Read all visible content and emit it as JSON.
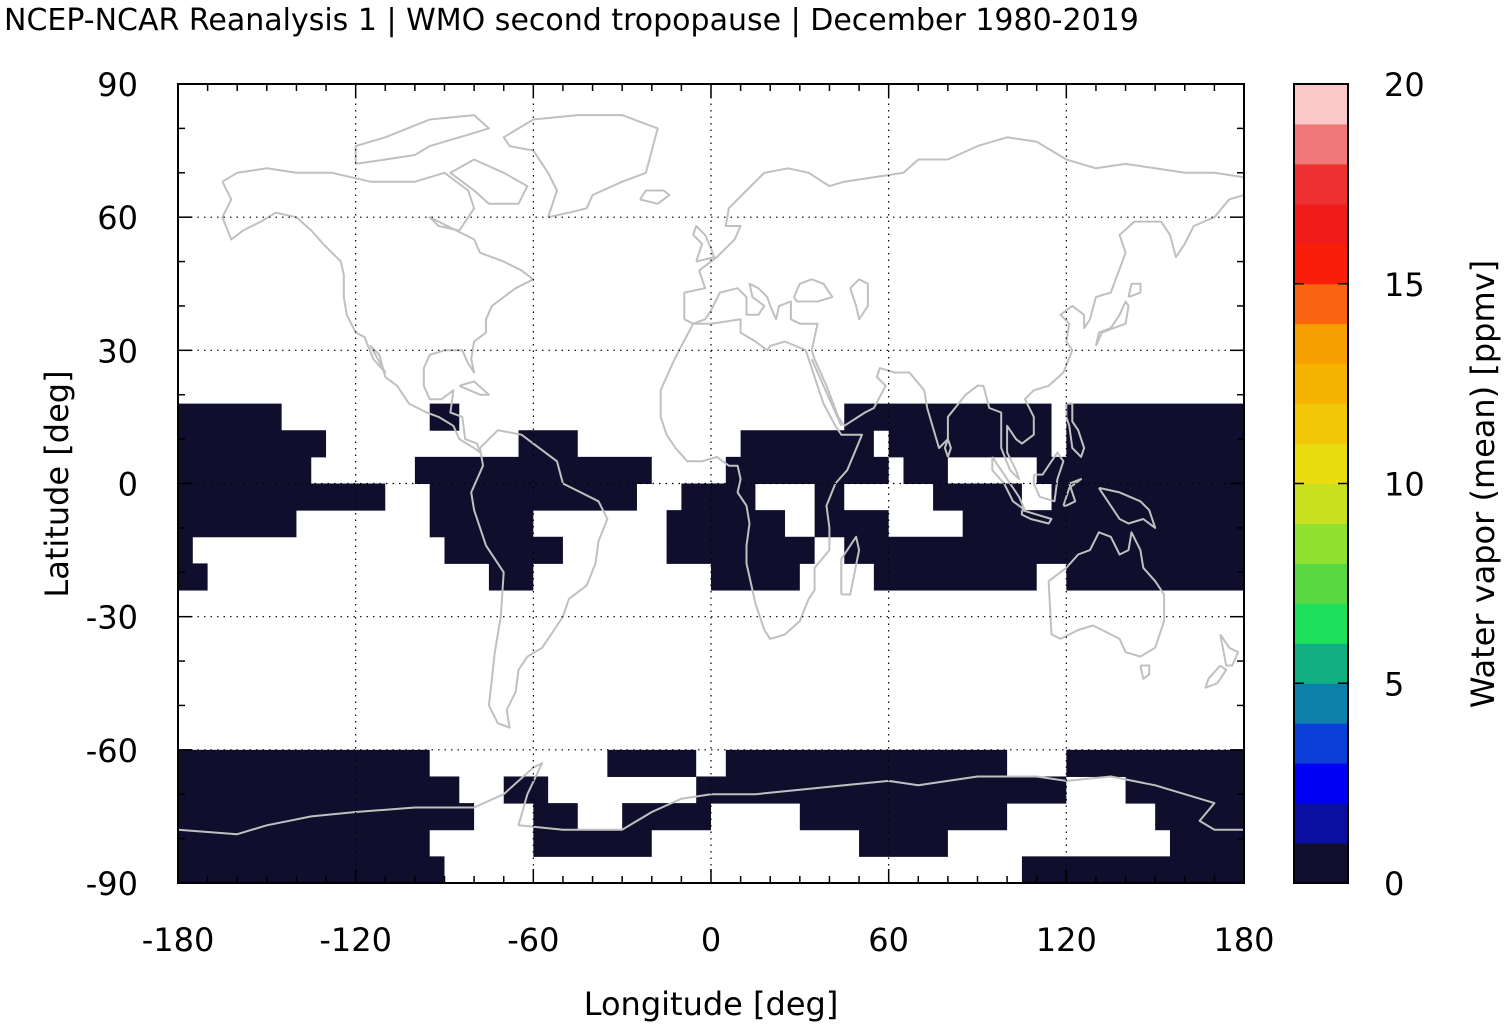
{
  "title": "NCEP-NCAR Reanalysis 1 | WMO second tropopause | December 1980-2019",
  "chart_data": {
    "type": "heatmap",
    "projection": "equirectangular",
    "xlabel": "Longitude [deg]",
    "ylabel": "Latitude [deg]",
    "xlim": [
      -180,
      180
    ],
    "ylim": [
      -90,
      90
    ],
    "xticks": [
      "-180",
      "-120",
      "-60",
      "0",
      "60",
      "120",
      "180"
    ],
    "yticks": [
      "90",
      "60",
      "30",
      "0",
      "-30",
      "-60",
      "-90"
    ],
    "grid": "dotted",
    "coastlines_color": "#c0c0c0",
    "cell_size_deg": [
      5,
      3
    ],
    "cell_value_ppmv": "0-1 (lowest colour class)",
    "cell_color": "#0f0f2d",
    "missing": "white",
    "colorbar": {
      "label": "Water vapor (mean) [ppmv]",
      "ticks": [
        "0",
        "5",
        "10",
        "15",
        "20"
      ],
      "range": [
        0,
        20
      ],
      "colors": [
        "#10102e",
        "#0a0fa0",
        "#0000f5",
        "#0a40d8",
        "#0a80aa",
        "#10b080",
        "#1de05a",
        "#5ad840",
        "#90e030",
        "#c8e020",
        "#e8dc10",
        "#f0c808",
        "#f5b400",
        "#f5a000",
        "#fa6410",
        "#fa1e0a",
        "#f01c1c",
        "#ee3030",
        "#f07878",
        "#fac8c8"
      ]
    },
    "high_band": [
      {
        "lat": [
          12,
          18
        ],
        "lon": [
          [
            -180,
            -145
          ],
          [
            -95,
            -85
          ],
          [
            45,
            90
          ],
          [
            90,
            115
          ],
          [
            120,
            180
          ]
        ]
      },
      {
        "lat": [
          6,
          12
        ],
        "lon": [
          [
            -180,
            -130
          ],
          [
            -65,
            -45
          ],
          [
            10,
            55
          ],
          [
            60,
            115
          ],
          [
            120,
            180
          ]
        ]
      },
      {
        "lat": [
          0,
          6
        ],
        "lon": [
          [
            -180,
            -135
          ],
          [
            -100,
            -20
          ],
          [
            5,
            60
          ],
          [
            65,
            80
          ],
          [
            110,
            180
          ]
        ]
      },
      {
        "lat": [
          -6,
          0
        ],
        "lon": [
          [
            -180,
            -110
          ],
          [
            -95,
            -25
          ],
          [
            -10,
            15
          ],
          [
            35,
            45
          ],
          [
            75,
            105
          ],
          [
            115,
            180
          ]
        ]
      },
      {
        "lat": [
          -12,
          -6
        ],
        "lon": [
          [
            -180,
            -140
          ],
          [
            -95,
            -60
          ],
          [
            -15,
            25
          ],
          [
            35,
            60
          ],
          [
            85,
            180
          ]
        ]
      },
      {
        "lat": [
          -18,
          -12
        ],
        "lon": [
          [
            -180,
            -175
          ],
          [
            -90,
            -50
          ],
          [
            -15,
            35
          ],
          [
            45,
            180
          ]
        ]
      },
      {
        "lat": [
          -24,
          -18
        ],
        "lon": [
          [
            -180,
            -170
          ],
          [
            -75,
            -60
          ],
          [
            0,
            30
          ],
          [
            55,
            110
          ],
          [
            120,
            180
          ]
        ]
      },
      {
        "lat": [
          -60,
          -66
        ],
        "lon": [
          [
            -180,
            -95
          ],
          [
            -35,
            -5
          ],
          [
            5,
            100
          ],
          [
            120,
            180
          ]
        ]
      },
      {
        "lat": [
          -66,
          -72
        ],
        "lon": [
          [
            -180,
            -85
          ],
          [
            -70,
            -55
          ],
          [
            -5,
            120
          ],
          [
            140,
            180
          ]
        ]
      },
      {
        "lat": [
          -72,
          -78
        ],
        "lon": [
          [
            -180,
            -80
          ],
          [
            -60,
            -45
          ],
          [
            -30,
            0
          ],
          [
            30,
            100
          ],
          [
            150,
            180
          ]
        ]
      },
      {
        "lat": [
          -78,
          -84
        ],
        "lon": [
          [
            -180,
            -95
          ],
          [
            -60,
            -20
          ],
          [
            50,
            80
          ],
          [
            155,
            180
          ]
        ]
      },
      {
        "lat": [
          -84,
          -90
        ],
        "lon": [
          [
            -180,
            -90
          ],
          [
            105,
            180
          ]
        ]
      }
    ]
  }
}
